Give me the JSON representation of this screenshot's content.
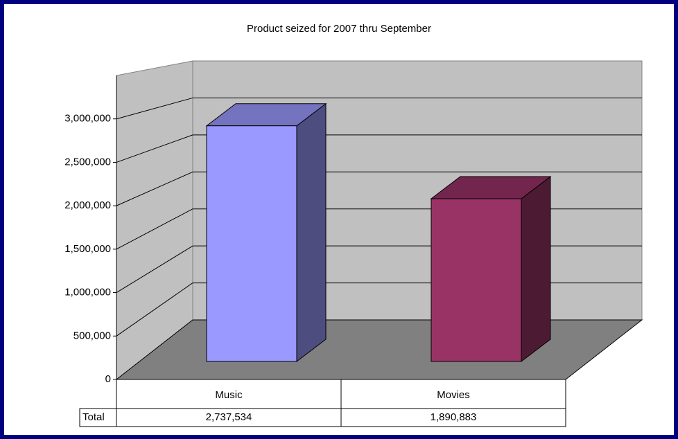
{
  "chart_data": {
    "type": "bar3d",
    "title": "Product seized for 2007 thru September",
    "categories": [
      "Music",
      "Movies"
    ],
    "series": [
      {
        "name": "Total",
        "values": [
          2737534,
          1890883
        ],
        "value_labels": [
          "2,737,534",
          "1,890,883"
        ]
      }
    ],
    "colors": [
      "#9999ff",
      "#993366"
    ],
    "ylim": [
      0,
      3500000
    ],
    "yticks": [
      0,
      {
        "value": 500000,
        "label": "500,000"
      },
      {
        "value": 1000000,
        "label": "1,000,000"
      },
      {
        "value": 1500000,
        "label": "1,500,000"
      },
      {
        "value": 2000000,
        "label": "2,000,000"
      },
      {
        "value": 2500000,
        "label": "2,500,000"
      },
      {
        "value": 3000000,
        "label": "3,000,000"
      }
    ],
    "grid": true
  }
}
